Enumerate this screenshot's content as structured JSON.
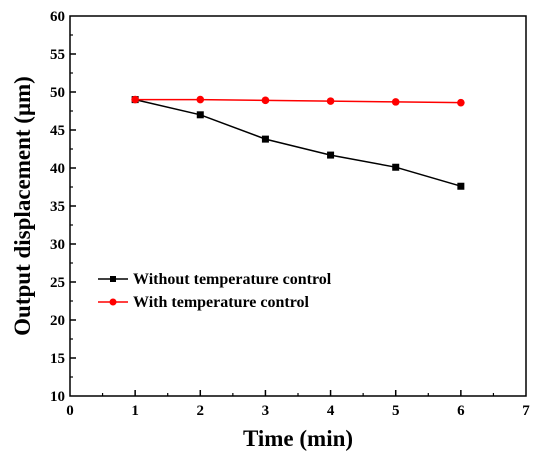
{
  "chart_data": {
    "type": "line",
    "xlabel": "Time (min)",
    "ylabel": "Output displacement (μm)",
    "xlim": [
      0,
      7
    ],
    "ylim": [
      10,
      60
    ],
    "xticks": [
      "0",
      "1",
      "2",
      "3",
      "4",
      "5",
      "6",
      "7"
    ],
    "yticks": [
      "10",
      "15",
      "20",
      "25",
      "30",
      "35",
      "40",
      "45",
      "50",
      "55",
      "60"
    ],
    "grid": false,
    "legend_position": "left-middle",
    "series": [
      {
        "name": "Without temperature control",
        "marker": "square",
        "color": "#000000",
        "x": [
          1,
          2,
          3,
          4,
          5,
          6
        ],
        "y": [
          49.0,
          47.0,
          43.8,
          41.7,
          40.1,
          37.6
        ]
      },
      {
        "name": "With temperature control",
        "marker": "circle",
        "color": "#ff0000",
        "x": [
          1,
          2,
          3,
          4,
          5,
          6
        ],
        "y": [
          49.0,
          49.0,
          48.9,
          48.8,
          48.7,
          48.6
        ]
      }
    ]
  }
}
